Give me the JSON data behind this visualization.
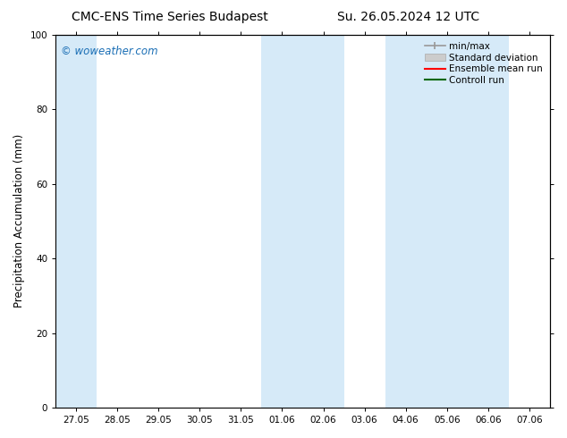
{
  "title_left": "CMC-ENS Time Series Budapest",
  "title_right": "Su. 26.05.2024 12 UTC",
  "ylabel": "Precipitation Accumulation (mm)",
  "watermark": "© woweather.com",
  "watermark_color": "#1a6eb5",
  "ylim": [
    0,
    100
  ],
  "yticks": [
    0,
    20,
    40,
    60,
    80,
    100
  ],
  "background_color": "#ffffff",
  "plot_bg_color": "#ffffff",
  "shaded_band_color": "#d6eaf8",
  "xtick_labels": [
    "27.05",
    "28.05",
    "29.05",
    "30.05",
    "31.05",
    "01.06",
    "02.06",
    "03.06",
    "04.06",
    "05.06",
    "06.06",
    "07.06"
  ],
  "shaded_x_indices": [
    0,
    5,
    6,
    8,
    9,
    10
  ],
  "legend_entries": [
    {
      "label": "min/max",
      "color": "#999999",
      "lw": 1.2
    },
    {
      "label": "Standard deviation",
      "color": "#cccccc",
      "lw": 6
    },
    {
      "label": "Ensemble mean run",
      "color": "#ff0000",
      "lw": 1.5
    },
    {
      "label": "Controll run",
      "color": "#006600",
      "lw": 1.5
    }
  ],
  "grid_color": "#cccccc",
  "spine_color": "#000000",
  "title_fontsize": 10,
  "tick_fontsize": 7.5,
  "ylabel_fontsize": 8.5,
  "watermark_fontsize": 8.5,
  "legend_fontsize": 7.5
}
